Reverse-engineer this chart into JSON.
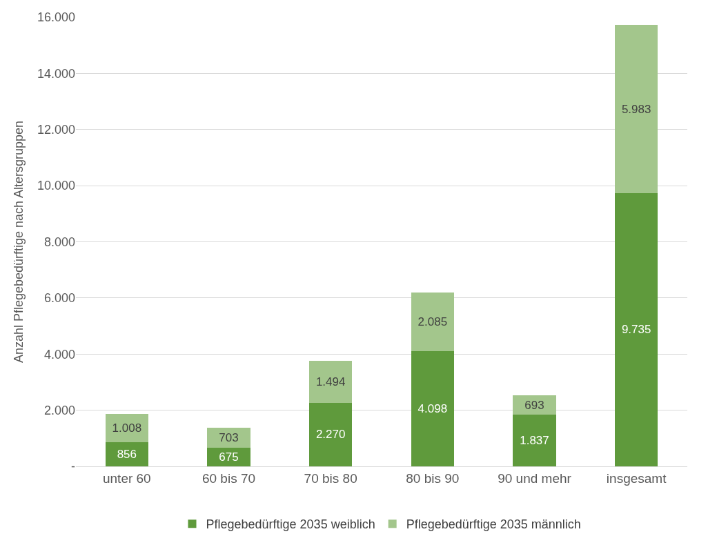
{
  "chart_data": {
    "type": "bar",
    "stacked": true,
    "ylabel": "Anzahl Pflegebedürftige nach Altersgruppen",
    "categories": [
      "unter 60",
      "60 bis 70",
      "70 bis 80",
      "80 bis 90",
      "90 und mehr",
      "insgesamt"
    ],
    "series": [
      {
        "name": "Pflegebedürftige 2035 weiblich",
        "color": "#5f9a3c",
        "values": [
          856,
          675,
          2270,
          4098,
          1837,
          9735
        ],
        "value_labels": [
          "856",
          "675",
          "2.270",
          "4.098",
          "1.837",
          "9.735"
        ]
      },
      {
        "name": "Pflegebedürftige 2035 männlich",
        "color": "#a3c68c",
        "values": [
          1008,
          703,
          1494,
          2085,
          693,
          5983
        ],
        "value_labels": [
          "1.008",
          "703",
          "1.494",
          "2.085",
          "693",
          "5.983"
        ]
      }
    ],
    "ylim": [
      0,
      16000
    ],
    "yticks": [
      {
        "value": 0,
        "label": "-"
      },
      {
        "value": 2000,
        "label": "2.000"
      },
      {
        "value": 4000,
        "label": "4.000"
      },
      {
        "value": 6000,
        "label": "6.000"
      },
      {
        "value": 8000,
        "label": "8.000"
      },
      {
        "value": 10000,
        "label": "10.000"
      },
      {
        "value": 12000,
        "label": "12.000"
      },
      {
        "value": 14000,
        "label": "14.000"
      },
      {
        "value": 16000,
        "label": "16.000"
      }
    ],
    "grid": "y",
    "legend": "bottom"
  }
}
